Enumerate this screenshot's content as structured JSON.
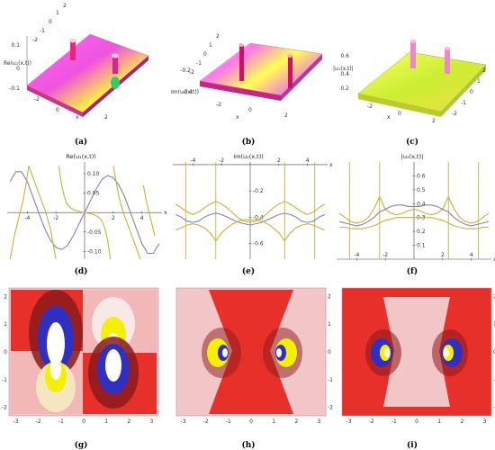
{
  "figure": {
    "colors": {
      "series_blue": "#7b86b8",
      "series_gold": "#c8b33a",
      "series_gray": "#8a8a9a",
      "contour_dark": "#8b1a1a",
      "contour_red": "#e8302a",
      "contour_pink": "#f2b8b8",
      "contour_white": "#ffffff",
      "contour_yellow": "#f4f000",
      "contour_blue": "#2a2ad0"
    }
  },
  "chart_data": [
    {
      "panel": "a",
      "caption": "(a)",
      "type": "surface3d",
      "zlabel": "Re(u₁(x,t))",
      "xlabel": "x",
      "z_ticks": [
        "0.1",
        "0",
        "-0.1"
      ],
      "t_ticks": [
        "2",
        "1",
        "0",
        "-1",
        "-2"
      ],
      "x_ticks": [
        "-2",
        "0",
        "2"
      ],
      "colors": [
        "#ff66ff",
        "#ffff44",
        "#dd22aa",
        "#22bb55"
      ]
    },
    {
      "panel": "b",
      "caption": "(b)",
      "type": "surface3d",
      "zlabel": "Im(u₁(x,t))",
      "xlabel": "x",
      "z_ticks": [
        "-0.2",
        "-0.4"
      ],
      "t_ticks": [
        "2",
        "1",
        "0",
        "-1",
        "-2"
      ],
      "x_ticks": [
        "-2",
        "0",
        "2"
      ],
      "colors": [
        "#ff66ff",
        "#ffff44",
        "#dd22aa"
      ]
    },
    {
      "panel": "c",
      "caption": "(c)",
      "type": "surface3d",
      "zlabel": "|u₁(x,t)|",
      "xlabel": "x",
      "z_ticks": [
        "0.6",
        "0.4",
        "0.2"
      ],
      "t_ticks": [
        "2",
        "1",
        "0",
        "-1",
        "-2"
      ],
      "x_ticks": [
        "-2",
        "0",
        "2"
      ],
      "colors": [
        "#ffff44",
        "#b8e830",
        "#ff88ee"
      ]
    },
    {
      "panel": "d",
      "caption": "(d)",
      "type": "line",
      "title": "Re(u₁(x,t))",
      "xlabel": "x",
      "xlim": [
        -5.4,
        5.4
      ],
      "ylim": [
        -0.12,
        0.13
      ],
      "x_ticks": [
        -4,
        -2,
        2,
        4
      ],
      "y_ticks": [
        0.1,
        0.05,
        -0.05,
        -0.1
      ],
      "y_tick_labels": [
        "0.10",
        "0.05",
        "-0.05",
        "-0.10"
      ],
      "series": [
        {
          "key": "blue",
          "color": "#7b86b8",
          "x": [
            -5.2,
            -4.8,
            -4.4,
            -4.0,
            -3.6,
            -3.2,
            -2.8,
            -2.4,
            -2.0,
            -1.6,
            -1.2,
            -0.8,
            -0.4,
            0,
            0.4,
            0.8,
            1.2,
            1.6,
            2.0,
            2.4,
            2.8,
            3.2,
            3.6,
            4.0,
            4.4,
            4.8,
            5.2
          ],
          "y": [
            0.08,
            0.105,
            0.105,
            0.08,
            0.04,
            0.0,
            -0.04,
            -0.07,
            -0.09,
            -0.095,
            -0.085,
            -0.06,
            -0.03,
            0.0,
            0.03,
            0.06,
            0.085,
            0.095,
            0.09,
            0.07,
            0.04,
            0.0,
            -0.04,
            -0.08,
            -0.105,
            -0.105,
            -0.08
          ]
        },
        {
          "key": "gold",
          "color": "#c8b33a",
          "x": [
            -5.2,
            -4.9,
            -4.7,
            -4.5,
            -4.3,
            -4.1,
            -3.9,
            -3.6,
            -3.3,
            -3.0,
            -2.7,
            -2.4,
            -2.2,
            -2.0,
            -1.8,
            -1.6,
            -1.4,
            -1.2,
            -0.9,
            -0.6,
            -0.3,
            0,
            0.3,
            0.6,
            0.9,
            1.2,
            1.4,
            1.6,
            1.8,
            2.0,
            2.2,
            2.4,
            2.7,
            3.0,
            3.3,
            3.6,
            3.9,
            4.1,
            4.3,
            4.5,
            4.7,
            4.9,
            5.2
          ],
          "y": [
            -0.12,
            -0.06,
            -0.03,
            0.0,
            0.03,
            0.07,
            0.12,
            0.09,
            0.06,
            0.03,
            0.0,
            -0.04,
            -0.08,
            -0.12,
            0.12,
            0.07,
            0.04,
            0.02,
            0.01,
            0.005,
            0.002,
            0.0,
            -0.002,
            -0.005,
            -0.01,
            -0.02,
            -0.04,
            -0.07,
            -0.12,
            0.12,
            0.08,
            0.04,
            0.0,
            -0.03,
            -0.06,
            -0.09,
            -0.12,
            0.07,
            0.03,
            0.0,
            -0.03,
            -0.06,
            0.12
          ]
        }
      ]
    },
    {
      "panel": "e",
      "caption": "(e)",
      "type": "line",
      "title": "Im(u₁(x,t))",
      "xlabel": "x",
      "xlim": [
        -5.4,
        5.4
      ],
      "ylim": [
        -0.72,
        0.02
      ],
      "x_ticks": [
        -4,
        -2,
        2,
        4
      ],
      "y_ticks": [
        -0.2,
        -0.4,
        -0.6
      ],
      "y_tick_labels": [
        "-0.2",
        "-0.4",
        "-0.6"
      ],
      "series": [
        {
          "key": "gold_upper",
          "color": "#c8b33a",
          "x": [
            -5.2,
            -4.8,
            -4.4,
            -4.0,
            -3.6,
            -3.2,
            -2.8,
            -2.4,
            -2.0,
            -1.6,
            -1.2,
            -0.8,
            -0.4,
            0,
            0.4,
            0.8,
            1.2,
            1.6,
            2.0,
            2.4,
            2.8,
            3.2,
            3.6,
            4.0,
            4.4,
            4.8,
            5.2
          ],
          "y": [
            -0.3,
            -0.33,
            -0.36,
            -0.38,
            -0.36,
            -0.33,
            -0.3,
            -0.28,
            -0.3,
            -0.33,
            -0.37,
            -0.41,
            -0.43,
            -0.44,
            -0.43,
            -0.41,
            -0.37,
            -0.33,
            -0.3,
            -0.28,
            -0.3,
            -0.33,
            -0.36,
            -0.38,
            -0.36,
            -0.33,
            -0.3
          ]
        },
        {
          "key": "blue",
          "color": "#7b86b8",
          "x": [
            -5.2,
            -4.8,
            -4.4,
            -4.0,
            -3.6,
            -3.2,
            -2.8,
            -2.4,
            -2.0,
            -1.6,
            -1.2,
            -0.8,
            -0.4,
            0,
            0.4,
            0.8,
            1.2,
            1.6,
            2.0,
            2.4,
            2.8,
            3.2,
            3.6,
            4.0,
            4.4,
            4.8,
            5.2
          ],
          "y": [
            -0.38,
            -0.4,
            -0.43,
            -0.44,
            -0.43,
            -0.4,
            -0.38,
            -0.37,
            -0.38,
            -0.4,
            -0.42,
            -0.44,
            -0.45,
            -0.46,
            -0.45,
            -0.44,
            -0.42,
            -0.4,
            -0.38,
            -0.37,
            -0.38,
            -0.4,
            -0.43,
            -0.44,
            -0.43,
            -0.4,
            -0.38
          ]
        },
        {
          "key": "gold_lower",
          "color": "#c8b33a",
          "x": [
            -5.2,
            -4.8,
            -4.4,
            -4.0,
            -3.6,
            -3.2,
            -2.8,
            -2.4,
            -2.0,
            -1.6,
            -1.2,
            -0.8,
            -0.4,
            0,
            0.4,
            0.8,
            1.2,
            1.6,
            2.0,
            2.4,
            2.8,
            3.2,
            3.6,
            4.0,
            4.4,
            4.8,
            5.2
          ],
          "y": [
            -0.5,
            -0.48,
            -0.46,
            -0.45,
            -0.46,
            -0.48,
            -0.52,
            -0.58,
            -0.52,
            -0.48,
            -0.45,
            -0.43,
            -0.42,
            -0.42,
            -0.42,
            -0.43,
            -0.45,
            -0.48,
            -0.52,
            -0.58,
            -0.52,
            -0.48,
            -0.46,
            -0.45,
            -0.46,
            -0.48,
            -0.5
          ]
        }
      ],
      "asymptotes_x": [
        -4.5,
        -2.4,
        2.4,
        4.5
      ]
    },
    {
      "panel": "f",
      "caption": "(f)",
      "type": "line",
      "title": "|u₁(x,t)|",
      "xlabel": "x",
      "xlim": [
        -5.4,
        5.4
      ],
      "ylim": [
        0.0,
        0.7
      ],
      "x_ticks": [
        -4,
        -2,
        2,
        4
      ],
      "y_ticks": [
        0.6,
        0.5,
        0.4,
        0.3,
        0.2,
        0.1
      ],
      "y_tick_labels": [
        "0.6",
        "0.5",
        "0.4",
        "0.3",
        "0.2",
        "0.1"
      ],
      "series": [
        {
          "key": "gold_upper",
          "color": "#c8b33a",
          "x": [
            -5.2,
            -4.8,
            -4.4,
            -4.0,
            -3.6,
            -3.2,
            -2.8,
            -2.4,
            -2.0,
            -1.6,
            -1.2,
            -0.8,
            -0.4,
            0,
            0.4,
            0.8,
            1.2,
            1.6,
            2.0,
            2.4,
            2.8,
            3.2,
            3.6,
            4.0,
            4.4,
            4.8,
            5.2
          ],
          "y": [
            0.33,
            0.3,
            0.27,
            0.26,
            0.27,
            0.3,
            0.36,
            0.45,
            0.36,
            0.33,
            0.32,
            0.33,
            0.35,
            0.36,
            0.35,
            0.33,
            0.32,
            0.33,
            0.36,
            0.45,
            0.36,
            0.3,
            0.27,
            0.26,
            0.27,
            0.3,
            0.33
          ]
        },
        {
          "key": "blue",
          "color": "#7b86b8",
          "x": [
            -5.2,
            -4.8,
            -4.4,
            -4.0,
            -3.6,
            -3.2,
            -2.8,
            -2.4,
            -2.0,
            -1.6,
            -1.2,
            -0.8,
            -0.4,
            0,
            0.4,
            0.8,
            1.2,
            1.6,
            2.0,
            2.4,
            2.8,
            3.2,
            3.6,
            4.0,
            4.4,
            4.8,
            5.2
          ],
          "y": [
            0.27,
            0.26,
            0.25,
            0.24,
            0.25,
            0.27,
            0.3,
            0.34,
            0.36,
            0.38,
            0.39,
            0.39,
            0.38,
            0.38,
            0.38,
            0.39,
            0.39,
            0.38,
            0.36,
            0.34,
            0.3,
            0.27,
            0.25,
            0.24,
            0.25,
            0.26,
            0.27
          ]
        },
        {
          "key": "gold_lower",
          "color": "#c8b33a",
          "x": [
            -5.2,
            -4.8,
            -4.4,
            -4.0,
            -3.6,
            -3.2,
            -2.8,
            -2.4,
            -2.0,
            -1.6,
            -1.2,
            -0.8,
            -0.4,
            0,
            0.4,
            0.8,
            1.2,
            1.6,
            2.0,
            2.4,
            2.8,
            3.2,
            3.6,
            4.0,
            4.4,
            4.8,
            5.2
          ],
          "y": [
            0.23,
            0.23,
            0.22,
            0.22,
            0.22,
            0.23,
            0.24,
            0.26,
            0.28,
            0.29,
            0.3,
            0.3,
            0.3,
            0.3,
            0.3,
            0.3,
            0.3,
            0.29,
            0.28,
            0.26,
            0.24,
            0.23,
            0.22,
            0.22,
            0.22,
            0.23,
            0.23
          ]
        }
      ],
      "asymptotes_x": [
        -4.5,
        -2.4,
        2.4,
        4.5
      ]
    },
    {
      "panel": "g",
      "caption": "(g)",
      "type": "heatmap",
      "xlim": [
        -3.3,
        3.3
      ],
      "ylim": [
        -2.3,
        2.3
      ],
      "x_ticks": [
        -3,
        -2,
        -1,
        0,
        1,
        2,
        3
      ],
      "y_ticks": [
        2,
        1,
        0,
        -1,
        -2
      ]
    },
    {
      "panel": "h",
      "caption": "(h)",
      "type": "heatmap",
      "xlim": [
        -3.3,
        3.3
      ],
      "ylim": [
        -2.3,
        2.3
      ],
      "x_ticks": [
        -3,
        -2,
        -1,
        0,
        1,
        2,
        3
      ],
      "y_ticks": [
        2,
        1,
        0,
        -1,
        -2
      ]
    },
    {
      "panel": "i",
      "caption": "(i)",
      "type": "heatmap",
      "xlim": [
        -3.3,
        3.3
      ],
      "ylim": [
        -2.3,
        2.3
      ],
      "x_ticks": [
        -3,
        -2,
        -1,
        0,
        1,
        2,
        3
      ],
      "y_ticks": [
        2,
        1,
        0,
        -1,
        -2
      ]
    }
  ]
}
